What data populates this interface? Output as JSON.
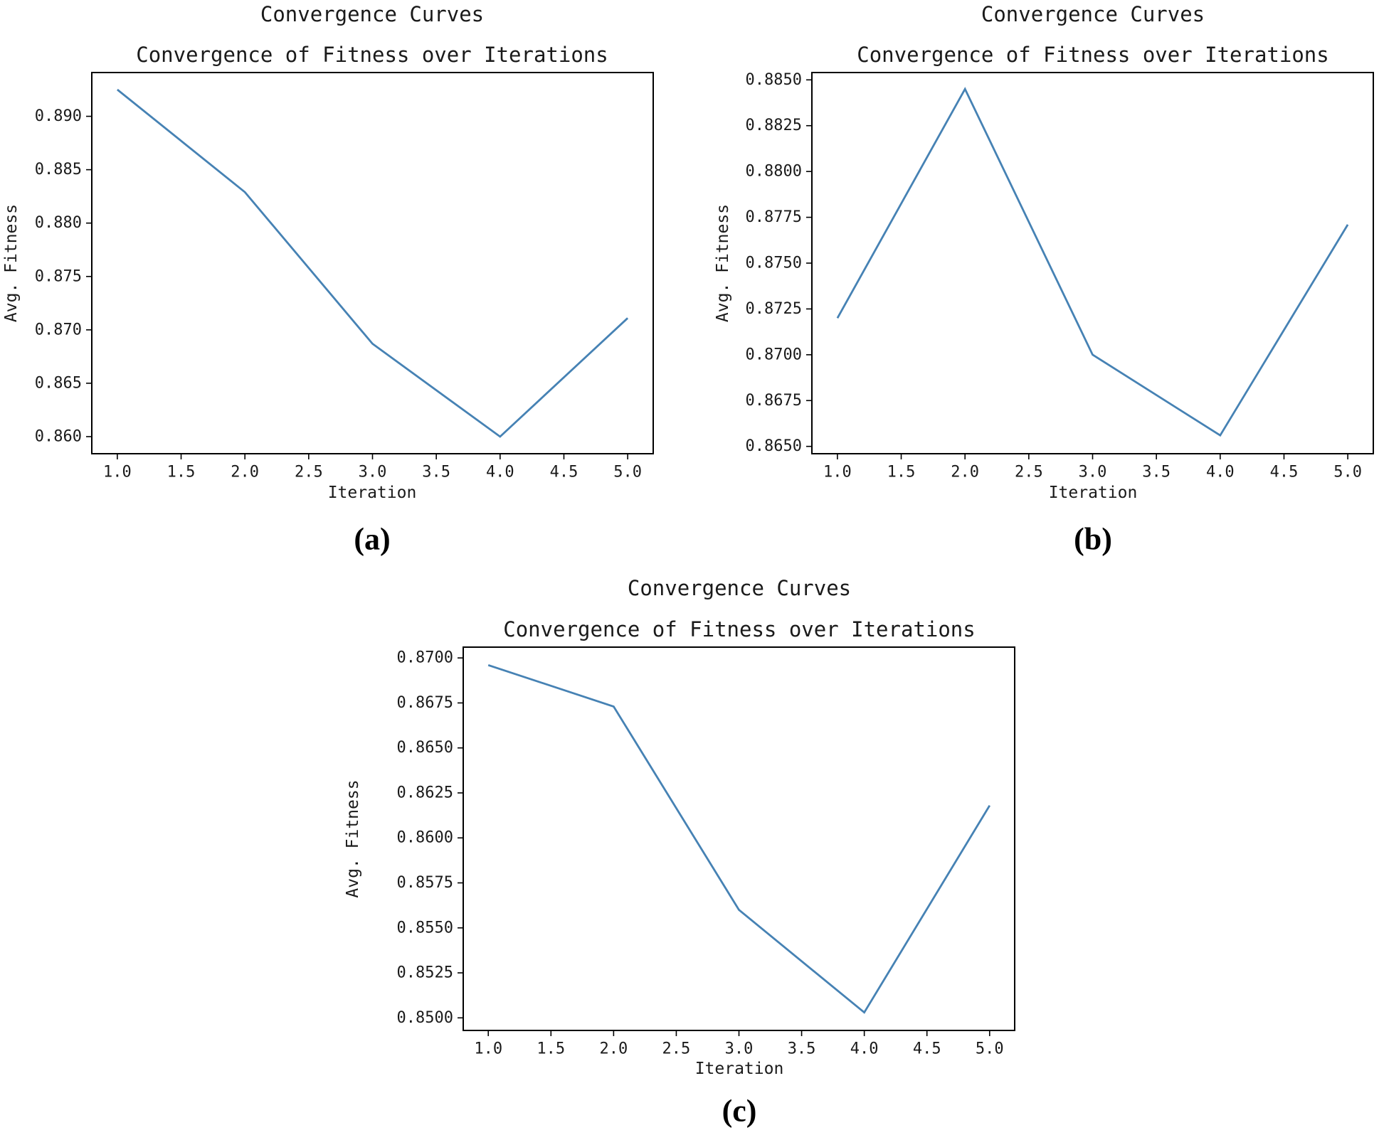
{
  "chart_data": [
    {
      "type": "line",
      "suptitle": "Convergence Curves",
      "title": "Convergence of Fitness over Iterations",
      "xlabel": "Iteration",
      "ylabel": "Avg. Fitness",
      "caption": "(a)",
      "x": [
        1,
        2,
        3,
        4,
        5
      ],
      "series": [
        {
          "values": [
            0.8925,
            0.8829,
            0.8687,
            0.86,
            0.8711
          ]
        }
      ],
      "xlim": [
        0.8,
        5.2
      ],
      "ylim": [
        0.8584,
        0.8941
      ],
      "xticks": [
        1.0,
        1.5,
        2.0,
        2.5,
        3.0,
        3.5,
        4.0,
        4.5,
        5.0
      ],
      "xtick_labels": [
        "1.0",
        "1.5",
        "2.0",
        "2.5",
        "3.0",
        "3.5",
        "4.0",
        "4.5",
        "5.0"
      ],
      "yticks": [
        0.86,
        0.865,
        0.87,
        0.875,
        0.88,
        0.885,
        0.89
      ],
      "ytick_labels": [
        "0.860",
        "0.865",
        "0.870",
        "0.875",
        "0.880",
        "0.885",
        "0.890"
      ],
      "grid": false,
      "line_color": "#4682b4"
    },
    {
      "type": "line",
      "suptitle": "Convergence Curves",
      "title": "Convergence of Fitness over Iterations",
      "xlabel": "Iteration",
      "ylabel": "Avg. Fitness",
      "caption": "(b)",
      "x": [
        1,
        2,
        3,
        4,
        5
      ],
      "series": [
        {
          "values": [
            0.872,
            0.8845,
            0.87,
            0.8656,
            0.8771
          ]
        }
      ],
      "xlim": [
        0.8,
        5.2
      ],
      "ylim": [
        0.8646,
        0.8854
      ],
      "xticks": [
        1.0,
        1.5,
        2.0,
        2.5,
        3.0,
        3.5,
        4.0,
        4.5,
        5.0
      ],
      "xtick_labels": [
        "1.0",
        "1.5",
        "2.0",
        "2.5",
        "3.0",
        "3.5",
        "4.0",
        "4.5",
        "5.0"
      ],
      "yticks": [
        0.865,
        0.8675,
        0.87,
        0.8725,
        0.875,
        0.8775,
        0.88,
        0.8825,
        0.885
      ],
      "ytick_labels": [
        "0.8650",
        "0.8675",
        "0.8700",
        "0.8725",
        "0.8750",
        "0.8775",
        "0.8800",
        "0.8825",
        "0.8850"
      ],
      "grid": false,
      "line_color": "#4682b4"
    },
    {
      "type": "line",
      "suptitle": "Convergence Curves",
      "title": "Convergence of Fitness over Iterations",
      "xlabel": "Iteration",
      "ylabel": "Avg. Fitness",
      "caption": "(c)",
      "x": [
        1,
        2,
        3,
        4,
        5
      ],
      "series": [
        {
          "values": [
            0.8696,
            0.8673,
            0.856,
            0.8503,
            0.8618
          ]
        }
      ],
      "xlim": [
        0.8,
        5.2
      ],
      "ylim": [
        0.8493,
        0.8706
      ],
      "xticks": [
        1.0,
        1.5,
        2.0,
        2.5,
        3.0,
        3.5,
        4.0,
        4.5,
        5.0
      ],
      "xtick_labels": [
        "1.0",
        "1.5",
        "2.0",
        "2.5",
        "3.0",
        "3.5",
        "4.0",
        "4.5",
        "5.0"
      ],
      "yticks": [
        0.85,
        0.8525,
        0.855,
        0.8575,
        0.86,
        0.8625,
        0.865,
        0.8675,
        0.87
      ],
      "ytick_labels": [
        "0.8500",
        "0.8525",
        "0.8550",
        "0.8575",
        "0.8600",
        "0.8625",
        "0.8650",
        "0.8675",
        "0.8700"
      ],
      "grid": false,
      "line_color": "#4682b4"
    }
  ]
}
